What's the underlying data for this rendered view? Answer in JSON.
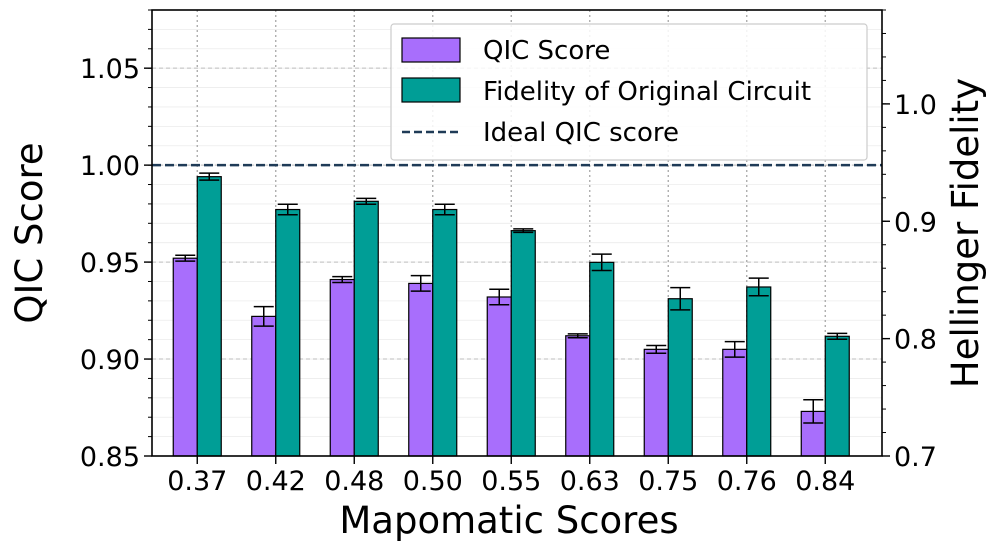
{
  "chart_data": {
    "type": "bar",
    "xlabel": "Mapomatic Scores",
    "ylabel": "QIC Score",
    "y2label": "Hellinger Fidelity",
    "categories": [
      "0.37",
      "0.42",
      "0.48",
      "0.50",
      "0.55",
      "0.63",
      "0.75",
      "0.76",
      "0.84"
    ],
    "ylim": [
      0.85,
      1.08
    ],
    "y2lim": [
      0.7,
      1.08
    ],
    "yticks": [
      "0.85",
      "0.90",
      "0.95",
      "1.00",
      "1.05"
    ],
    "y2ticks": [
      "0.7",
      "0.8",
      "0.9",
      "1.0"
    ],
    "grid": true,
    "legend_position": "top-right",
    "series": [
      {
        "name": "QIC Score",
        "axis": "left",
        "color": "#a86efc",
        "values": [
          0.952,
          0.922,
          0.941,
          0.939,
          0.932,
          0.912,
          0.905,
          0.905,
          0.873
        ],
        "errors": [
          0.0015,
          0.005,
          0.0015,
          0.004,
          0.004,
          0.001,
          0.002,
          0.004,
          0.006
        ]
      },
      {
        "name": "Fidelity of Original Circuit",
        "axis": "right",
        "color": "#009e96",
        "values": [
          0.938,
          0.91,
          0.917,
          0.91,
          0.892,
          0.865,
          0.834,
          0.844,
          0.802
        ],
        "errors": [
          0.003,
          0.0045,
          0.0025,
          0.0045,
          0.0015,
          0.007,
          0.0095,
          0.0075,
          0.0025
        ]
      }
    ],
    "reference_line": {
      "name": "Ideal QIC score",
      "value": 1.0,
      "axis": "left",
      "color": "#1f3b57",
      "style": "dashed"
    }
  }
}
